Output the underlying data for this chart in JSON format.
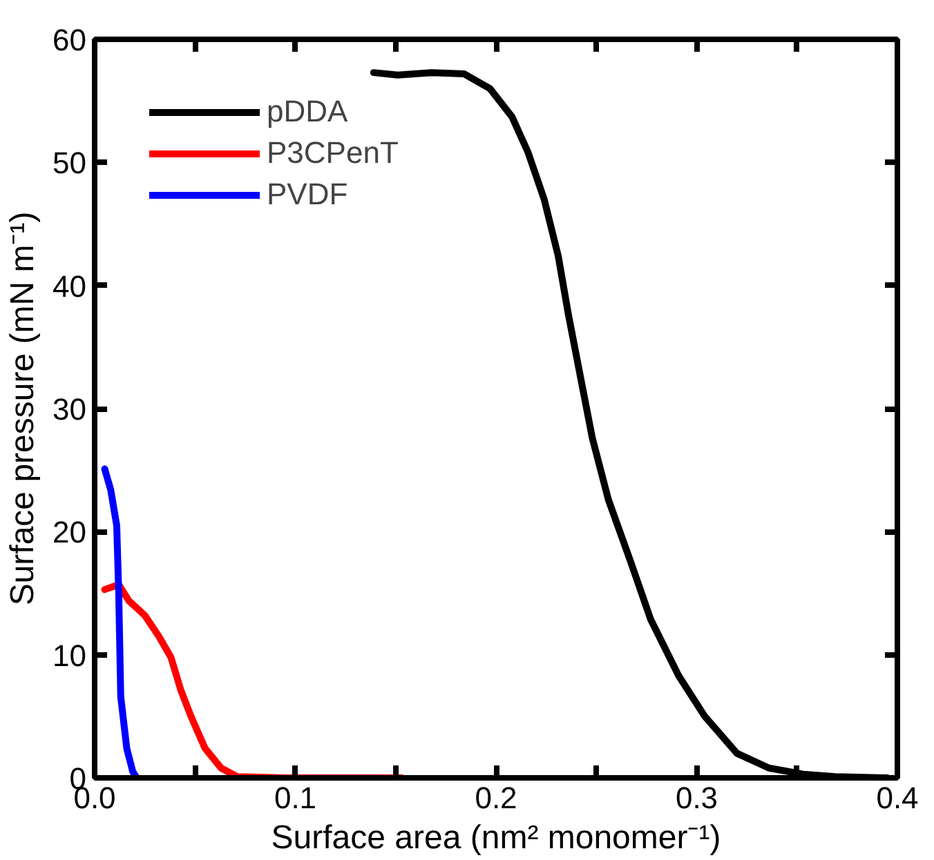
{
  "chart_data": {
    "type": "line",
    "xlabel": "Surface area (nm² monomer⁻¹)",
    "ylabel": "Surface pressure (mN m⁻¹)",
    "xlim": [
      0,
      0.4
    ],
    "ylim": [
      0,
      60
    ],
    "xticks": [
      {
        "value": 0,
        "label": "0.0"
      },
      {
        "value": 0.05,
        "label": null
      },
      {
        "value": 0.1,
        "label": "0.1"
      },
      {
        "value": 0.15,
        "label": null
      },
      {
        "value": 0.2,
        "label": "0.2"
      },
      {
        "value": 0.25,
        "label": null
      },
      {
        "value": 0.3,
        "label": "0.3"
      },
      {
        "value": 0.35,
        "label": null
      },
      {
        "value": 0.4,
        "label": "0.4"
      }
    ],
    "yticks": [
      0,
      10,
      20,
      30,
      40,
      50,
      60
    ],
    "legend": "top left",
    "grid": false,
    "marker": "none",
    "line_style": "solid",
    "series": [
      {
        "name": "pDDA",
        "color": "#000000",
        "x": [
          0.139,
          0.151,
          0.168,
          0.184,
          0.197,
          0.208,
          0.216,
          0.224,
          0.231,
          0.236,
          0.243,
          0.248,
          0.256,
          0.267,
          0.277,
          0.291,
          0.304,
          0.32,
          0.336,
          0.353,
          0.369,
          0.395
        ],
        "values": [
          57.3,
          57.1,
          57.3,
          57.2,
          56.0,
          53.7,
          50.8,
          47.0,
          42.4,
          37.7,
          31.8,
          27.6,
          22.6,
          17.6,
          12.9,
          8.3,
          5.0,
          2.0,
          0.8,
          0.3,
          0.1,
          0
        ]
      },
      {
        "name": "P3CPenT",
        "color": "#ff0000",
        "x": [
          0.005,
          0.012,
          0.017,
          0.025,
          0.032,
          0.038,
          0.043,
          0.048,
          0.055,
          0.063,
          0.071,
          0.095,
          0.153
        ],
        "values": [
          15.3,
          15.7,
          14.4,
          13.2,
          11.5,
          9.8,
          7.1,
          5.0,
          2.4,
          0.8,
          0.1,
          0,
          0
        ]
      },
      {
        "name": "PVDF",
        "color": "#0000ff",
        "x": [
          0.005,
          0.008,
          0.011,
          0.012,
          0.013,
          0.016,
          0.019,
          0.021
        ],
        "values": [
          25.1,
          23.4,
          20.5,
          15.0,
          6.6,
          2.4,
          0.5,
          0
        ]
      }
    ]
  }
}
